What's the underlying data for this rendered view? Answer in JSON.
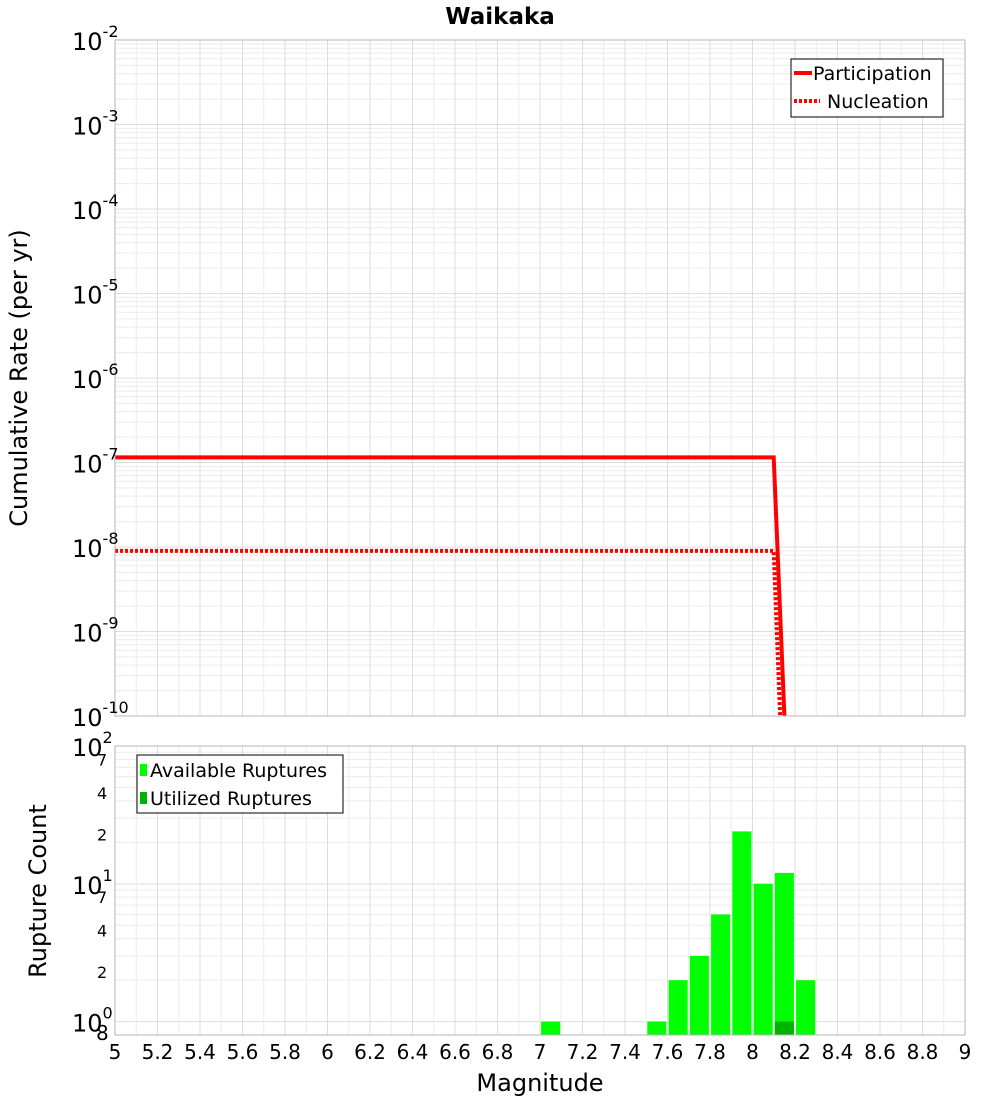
{
  "colors": {
    "line": "#ff0000",
    "available": "#00ff00",
    "utilized": "#00b300"
  },
  "chart_data": [
    {
      "type": "line",
      "title": "Waikaka",
      "ylabel": "Cumulative Rate (per yr)",
      "xlim": [
        5,
        9
      ],
      "ylim": [
        1e-10,
        0.01
      ],
      "yscale": "log",
      "ytick_labels": [
        {
          "base": "10",
          "exp": "-2"
        },
        {
          "base": "10",
          "exp": "-3"
        },
        {
          "base": "10",
          "exp": "-4"
        },
        {
          "base": "10",
          "exp": "-5"
        },
        {
          "base": "10",
          "exp": "-6"
        },
        {
          "base": "10",
          "exp": "-7"
        },
        {
          "base": "10",
          "exp": "-8"
        },
        {
          "base": "10",
          "exp": "-9"
        },
        {
          "base": "10",
          "exp": "-10"
        }
      ],
      "grid": true,
      "legend_position": "top-right",
      "legend": [
        "Participation",
        "Nucleation"
      ],
      "series": [
        {
          "name": "Participation",
          "style": "solid",
          "x": [
            5.0,
            8.1,
            8.15
          ],
          "y": [
            1.15e-07,
            1.15e-07,
            1e-10
          ]
        },
        {
          "name": "Nucleation",
          "style": "dotted",
          "x": [
            5.0,
            8.1,
            8.13
          ],
          "y": [
            9e-09,
            9e-09,
            1e-10
          ]
        }
      ]
    },
    {
      "type": "bar",
      "xlabel": "Magnitude",
      "ylabel": "Rupture Count",
      "xlim": [
        5,
        9
      ],
      "ylim": [
        0.8,
        100
      ],
      "yscale": "log",
      "xtick_labels": [
        "5",
        "5.2",
        "5.4",
        "5.6",
        "5.8",
        "6",
        "6.2",
        "6.4",
        "6.6",
        "6.8",
        "7",
        "7.2",
        "7.4",
        "7.6",
        "7.8",
        "8",
        "8.2",
        "8.4",
        "8.6",
        "8.8",
        "9"
      ],
      "ytick_labels": [
        {
          "base": "10",
          "exp": "2"
        },
        {
          "base": "",
          "exp": "7"
        },
        {
          "base": "",
          "exp": "4"
        },
        {
          "base": "",
          "exp": "2"
        },
        {
          "base": "10",
          "exp": "1"
        },
        {
          "base": "",
          "exp": "7"
        },
        {
          "base": "",
          "exp": "4"
        },
        {
          "base": "",
          "exp": "2"
        },
        {
          "base": "10",
          "exp": "0"
        },
        {
          "base": "8",
          "exp": ""
        }
      ],
      "grid": true,
      "legend_position": "top-left",
      "legend": [
        "Available Ruptures",
        "Utilized Ruptures"
      ],
      "series": [
        {
          "name": "Available Ruptures",
          "x": [
            7.05,
            7.55,
            7.65,
            7.75,
            7.85,
            7.95,
            8.05,
            8.15,
            8.25
          ],
          "values": [
            1,
            1,
            2,
            3,
            6,
            24,
            10,
            12,
            2
          ]
        },
        {
          "name": "Utilized Ruptures",
          "x": [
            8.15
          ],
          "values": [
            1
          ]
        }
      ]
    }
  ]
}
